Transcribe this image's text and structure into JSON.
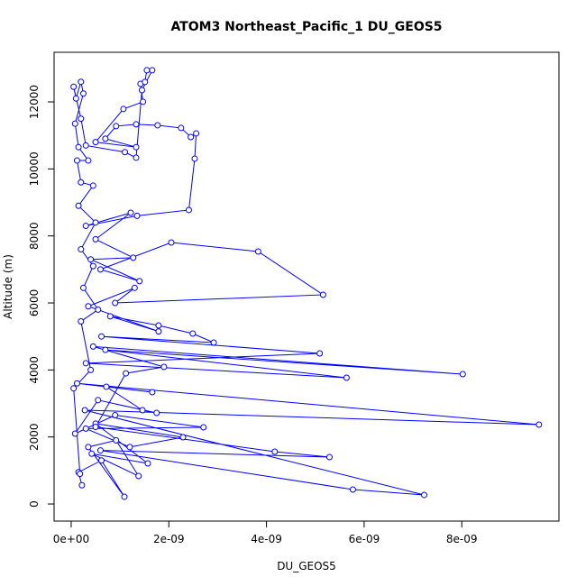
{
  "chart_data": {
    "type": "line",
    "markers": true,
    "title": "ATOM3 Northeast_Pacific_1 DU_GEOS5",
    "x_label": "DU_GEOS5",
    "y_label": "Altitude (m)",
    "color": "#0000ff",
    "x": [
      2.2e-10,
      1.5e-10,
      6.2e-10,
      1.09e-09,
      3.5e-10,
      9.2e-10,
      1.38e-09,
      4.2e-10,
      1.57e-09,
      5e-10,
      2.29e-09,
      1.2e-09,
      3e-10,
      2.71e-09,
      9e-10,
      8e-11,
      5.5e-10,
      1.75e-09,
      1.46e-09,
      7.2e-10,
      1.66e-09,
      1.2e-10,
      9.58e-09,
      2.8e-10,
      7.23e-09,
      5.77e-09,
      6e-10,
      5.29e-09,
      4.17e-09,
      5e-10,
      1.12e-09,
      1.9e-09,
      4.5e-10,
      8.02e-09,
      7e-10,
      5.64e-09,
      3e-10,
      5.09e-09,
      6.2e-10,
      2.92e-09,
      2.49e-09,
      1.79e-09,
      8e-10,
      1.79e-09,
      3.5e-10,
      1.3e-09,
      9e-10,
      5.16e-09,
      3.83e-09,
      2.05e-09,
      6e-10,
      1.4e-09,
      4e-10,
      1.27e-09,
      5e-10,
      1.22e-09,
      3e-10,
      1.35e-09,
      2.41e-09,
      2.53e-09,
      2.56e-09,
      2.45e-09,
      2.25e-09,
      1.77e-09,
      1.33e-09,
      9.2e-10,
      7e-10,
      1.33e-09,
      5e-10,
      1.07e-09,
      1.47e-09,
      1.42e-09,
      1.51e-09,
      1.55e-09,
      1.66e-09,
      1.45e-09,
      1.33e-09,
      1.1e-09,
      3e-10,
      2e-10,
      5e-11,
      1e-10,
      2e-10,
      2.5e-10,
      8e-11,
      1.5e-10,
      3.5e-10,
      1.2e-10,
      2e-10,
      4.5e-10,
      1.5e-10,
      5e-10,
      2e-10,
      4.5e-10,
      2.5e-10,
      5.5e-10,
      2e-10,
      4e-10,
      5e-11,
      1.8e-10
    ],
    "values": [
      560,
      950,
      1300,
      215,
      1700,
      1900,
      834,
      1500,
      1211,
      2400,
      1991,
      1700,
      2250,
      2287,
      2650,
      2100,
      3100,
      2718,
      2799,
      3500,
      3337,
      3600,
      2368,
      2800,
      269,
      431,
      1600,
      1399,
      1561,
      2300,
      3900,
      4090,
      4700,
      3875,
      4600,
      3768,
      4200,
      4494,
      5000,
      4817,
      5086,
      5328,
      5600,
      5150,
      5900,
      6450,
      6000,
      6243,
      7535,
      7804,
      7000,
      6650,
      7300,
      7350,
      7900,
      8692,
      8300,
      8600,
      8773,
      10307,
      11060,
      10950,
      11222,
      11302,
      11330,
      11276,
      10900,
      10650,
      10800,
      11787,
      12002,
      12540,
      12594,
      12944,
      12944,
      12350,
      10334,
      10500,
      10700,
      11500,
      12450,
      12100,
      12600,
      12250,
      11350,
      10650,
      10250,
      10250,
      9600,
      9500,
      8900,
      8400,
      7600,
      7100,
      6450,
      5800,
      5450,
      4000,
      3450,
      900
    ],
    "xlim": [
      -3.5e-10,
      9.99e-09
    ],
    "ylim": [
      -510,
      13480
    ],
    "xticks": [
      {
        "value": 0,
        "label": "0e+00"
      },
      {
        "value": 2e-09,
        "label": "2e-09"
      },
      {
        "value": 4e-09,
        "label": "4e-09"
      },
      {
        "value": 6e-09,
        "label": "6e-09"
      },
      {
        "value": 8e-09,
        "label": "8e-09"
      }
    ],
    "yticks": [
      0,
      2000,
      4000,
      6000,
      8000,
      10000,
      12000
    ]
  }
}
